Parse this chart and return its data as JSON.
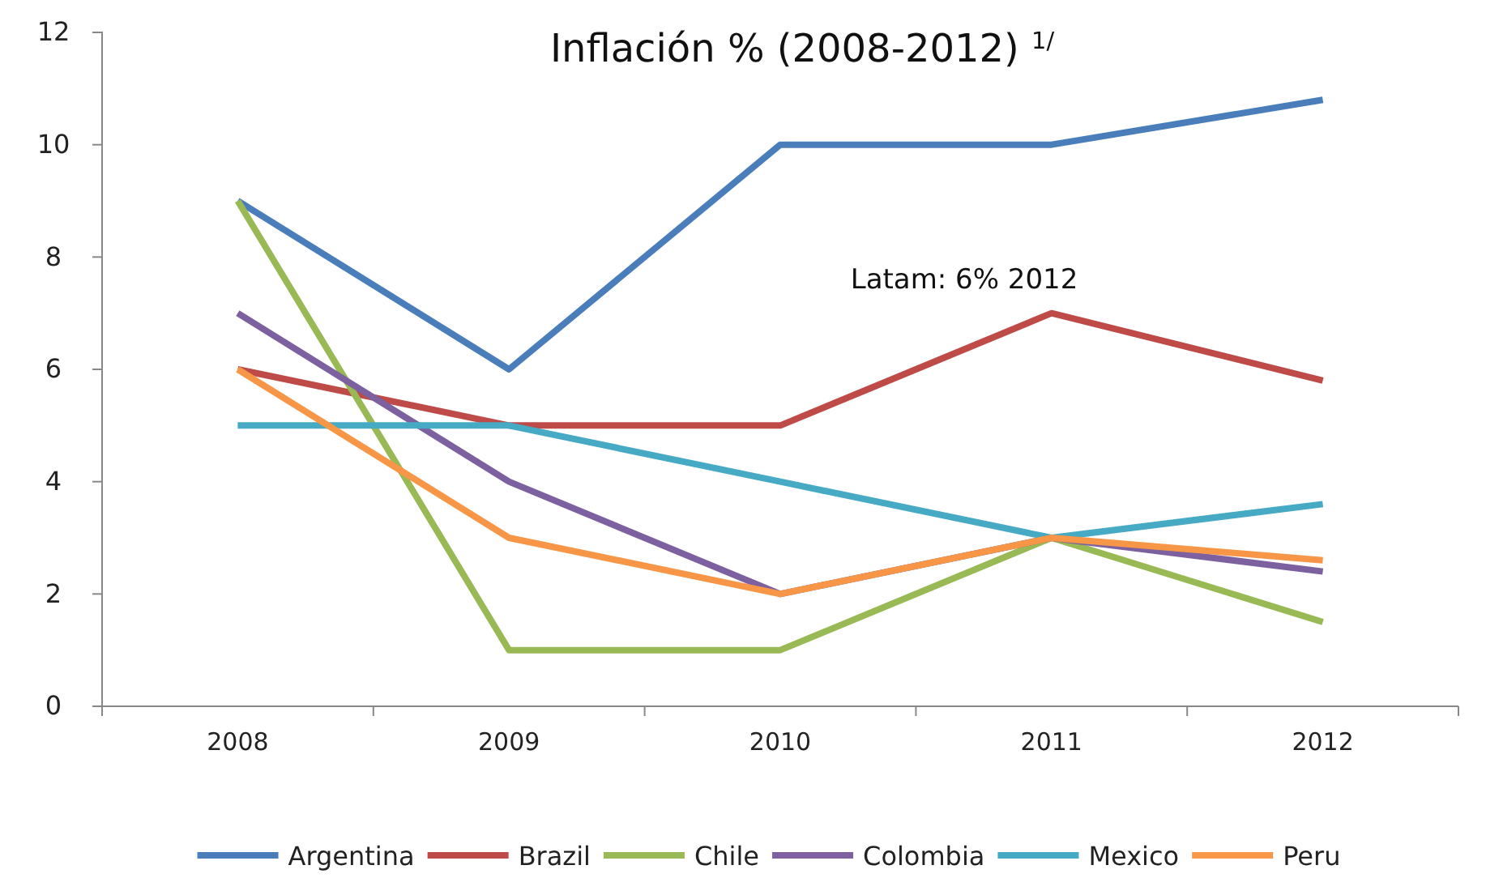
{
  "chart_data": {
    "type": "line",
    "title": "Inflación % (2008-2012) $^{1/}$",
    "categories": [
      "2008",
      "2009",
      "2010",
      "2011",
      "2012"
    ],
    "series": [
      {
        "name": "Argentina",
        "color": "#4a7ebb",
        "values": [
          9,
          6,
          10,
          10,
          10.8
        ]
      },
      {
        "name": "Brazil",
        "color": "#be4b48",
        "values": [
          6,
          5,
          5,
          7,
          5.8
        ]
      },
      {
        "name": "Chile",
        "color": "#98b954",
        "values": [
          9,
          1,
          1,
          3,
          1.5
        ]
      },
      {
        "name": "Colombia",
        "color": "#7d60a0",
        "values": [
          7,
          4,
          2,
          3,
          2.4
        ]
      },
      {
        "name": "Mexico",
        "color": "#46aac5",
        "values": [
          5,
          5,
          4,
          3,
          3.6
        ]
      },
      {
        "name": "Peru",
        "color": "#f79646",
        "values": [
          6,
          3,
          2,
          3,
          2.6
        ]
      }
    ],
    "ylim": [
      0,
      12
    ],
    "yticks": [
      0,
      2,
      4,
      6,
      8,
      10,
      12
    ],
    "grid": false,
    "legend": "bottom",
    "marker": "none",
    "line_style": "solid",
    "annotations": [
      "Latam: 6% 2012"
    ]
  }
}
